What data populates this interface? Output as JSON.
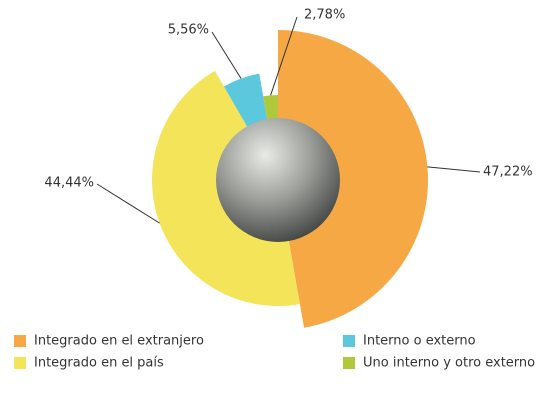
{
  "chart_data": {
    "type": "pie",
    "categories": [
      "Integrado en el extranjero",
      "Integrado en el país",
      "Interno o externo",
      "Uno interno y otro externo"
    ],
    "values": [
      47.22,
      44.44,
      5.56,
      2.78
    ],
    "value_labels": [
      "47,22%",
      "44,44%",
      "5,56%",
      "2,78%"
    ],
    "colors": [
      "#f5a843",
      "#f4e45a",
      "#5bc8de",
      "#afc93a"
    ]
  }
}
